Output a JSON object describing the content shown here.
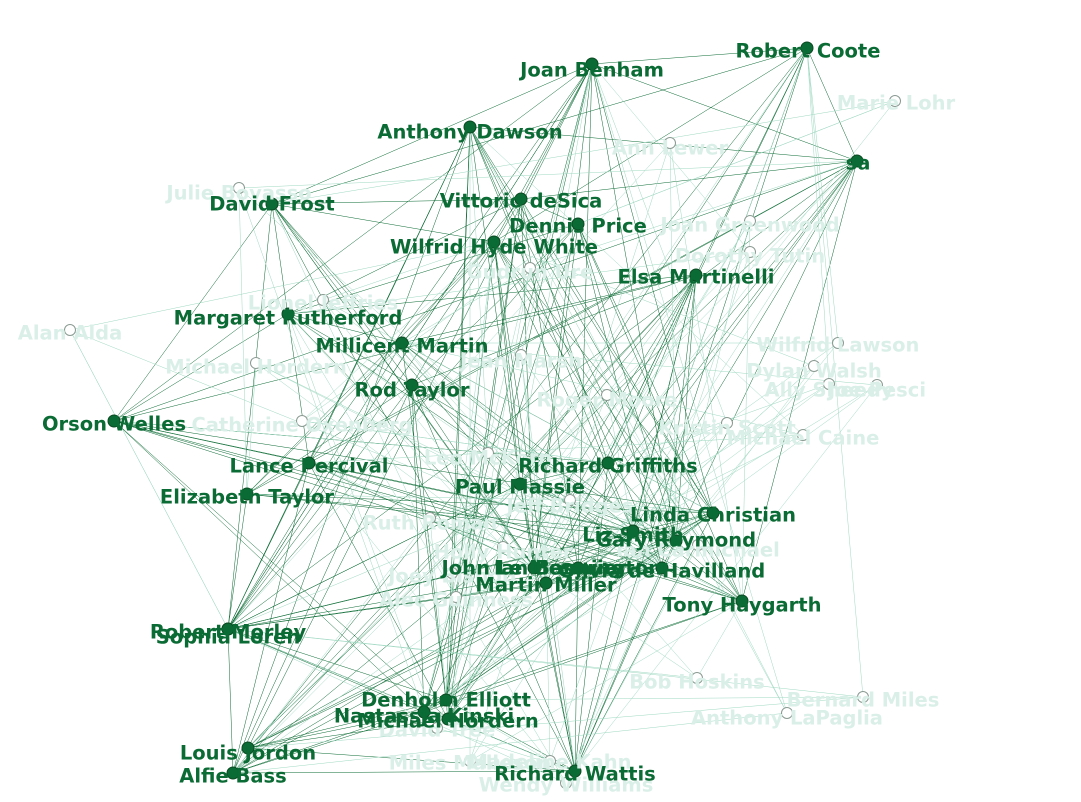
{
  "colors": {
    "highlight_node": "#0b6b34",
    "highlight_label": "#0b6b34",
    "faded_label": "#d9efe8",
    "edge": "#0b6b34",
    "faded_edge": "#9fd8c2",
    "background": "#ffffff"
  },
  "nodes": [
    {
      "id": "robert-coote",
      "label": "Robert Coote",
      "highlighted": true
    },
    {
      "id": "joan-benham",
      "label": "Joan Benham",
      "highlighted": true
    },
    {
      "id": "marie-lohr",
      "label": "Marie Lohr",
      "highlighted": false
    },
    {
      "id": "anthony-dawson",
      "label": "Anthony Dawson",
      "highlighted": true
    },
    {
      "id": "unknown-1",
      "label": "Ann Lewer",
      "highlighted": false
    },
    {
      "id": "sa",
      "label": "sa",
      "highlighted": true
    },
    {
      "id": "julie-bovasso",
      "label": "Julie Bovasso",
      "highlighted": false
    },
    {
      "id": "david-frost",
      "label": "David Frost",
      "highlighted": true
    },
    {
      "id": "vittorio-desica",
      "label": "Vittorio deSica",
      "highlighted": true
    },
    {
      "id": "dennis-price",
      "label": "Dennis Price",
      "highlighted": true
    },
    {
      "id": "joan-greenwood",
      "label": "Joan Greenwood",
      "highlighted": false
    },
    {
      "id": "dorothy-tutin",
      "label": "Dorothy Tutin",
      "highlighted": false
    },
    {
      "id": "wilfrid-hyde-white",
      "label": "Wilfrid Hyde White",
      "highlighted": true
    },
    {
      "id": "unknown-2",
      "label": "Gudrun Ure",
      "highlighted": false
    },
    {
      "id": "elsa-martinelli",
      "label": "Elsa Martinelli",
      "highlighted": true
    },
    {
      "id": "unknown-3",
      "label": "Lionel Jeffries",
      "highlighted": false
    },
    {
      "id": "alan-alda",
      "label": "Alan Alda",
      "highlighted": false
    },
    {
      "id": "margaret-rutherford",
      "label": "Margaret Rutherford",
      "highlighted": true
    },
    {
      "id": "millicent-martin",
      "label": "Millicent Martin",
      "highlighted": true
    },
    {
      "id": "wilfrid-lawson",
      "label": "Wilfrid Lawson",
      "highlighted": false
    },
    {
      "id": "unknown-4",
      "label": "Michael Hordern",
      "highlighted": false
    },
    {
      "id": "unknown-5",
      "label": "Jean Marsh",
      "highlighted": false
    },
    {
      "id": "dylan-walsh",
      "label": "Dylan Walsh",
      "highlighted": false
    },
    {
      "id": "ally-sheedy",
      "label": "Ally Sheedy",
      "highlighted": false
    },
    {
      "id": "joe-pesci",
      "label": "Joe Pesci",
      "highlighted": false
    },
    {
      "id": "rod-taylor",
      "label": "Rod Taylor",
      "highlighted": true
    },
    {
      "id": "unknown-6",
      "label": "Roger Moore",
      "highlighted": false
    },
    {
      "id": "orson-welles",
      "label": "Orson Welles",
      "highlighted": true
    },
    {
      "id": "catherine-oxenberg",
      "label": "Catherine Oxenberg",
      "highlighted": false
    },
    {
      "id": "unknown-7",
      "label": "Kristin Scott",
      "highlighted": false
    },
    {
      "id": "michael-caine",
      "label": "Michael Caine",
      "highlighted": false
    },
    {
      "id": "unknown-8",
      "label": "Leo McKern",
      "highlighted": false
    },
    {
      "id": "lance-percival",
      "label": "Lance Percival",
      "highlighted": true
    },
    {
      "id": "richard-griffiths",
      "label": "Richard Griffiths",
      "highlighted": true
    },
    {
      "id": "paul-massie",
      "label": "Paul Massie",
      "highlighted": true
    },
    {
      "id": "elizabeth-taylor",
      "label": "Elizabeth Taylor",
      "highlighted": true
    },
    {
      "id": "unknown-9",
      "label": "Jeff Bridges",
      "highlighted": false
    },
    {
      "id": "linda-christian",
      "label": "Linda Christian",
      "highlighted": true
    },
    {
      "id": "ruth-roman",
      "label": "Ruth Roman",
      "highlighted": false
    },
    {
      "id": "liz-smith",
      "label": "Liz Smith",
      "highlighted": true
    },
    {
      "id": "gary-raymond",
      "label": "Gary Raymond",
      "highlighted": true
    },
    {
      "id": "unknown-10",
      "label": "Ian Carmichael",
      "highlighted": false
    },
    {
      "id": "unknown-11",
      "label": "Holly Hunter",
      "highlighted": false
    },
    {
      "id": "joey-bishop",
      "label": "Joey Bishop",
      "highlighted": false
    },
    {
      "id": "john-le-mesurier",
      "label": "John Le Mesurier",
      "highlighted": true
    },
    {
      "id": "ian-bannington",
      "label": "Ian Bannington",
      "highlighted": true
    },
    {
      "id": "olivia-de-havilland",
      "label": "Olivia de Havilland",
      "highlighted": true
    },
    {
      "id": "martin-miller",
      "label": "Martin Miller",
      "highlighted": true
    },
    {
      "id": "unknown-12",
      "label": "Alec Guinness",
      "highlighted": false
    },
    {
      "id": "tony-haygarth",
      "label": "Tony Haygarth",
      "highlighted": true
    },
    {
      "id": "robert-morley",
      "label": "Robert Morley",
      "highlighted": true
    },
    {
      "id": "sophia-loren",
      "label": "Sophia Loren",
      "highlighted": true
    },
    {
      "id": "bob-hoskins",
      "label": "Bob Hoskins",
      "highlighted": false
    },
    {
      "id": "bernard-miles",
      "label": "Bernard Miles",
      "highlighted": false
    },
    {
      "id": "denholm-elliott",
      "label": "Denholm Elliott",
      "highlighted": true
    },
    {
      "id": "nastassja",
      "label": "Nastassja Kinski",
      "highlighted": true
    },
    {
      "id": "michael-hordern",
      "label": "Michael Hordern",
      "highlighted": true
    },
    {
      "id": "anthony-lapaglia",
      "label": "Anthony LaPaglia",
      "highlighted": false
    },
    {
      "id": "david-tree",
      "label": "David Tree",
      "highlighted": false
    },
    {
      "id": "louis-jordon",
      "label": "Louis Jordon",
      "highlighted": true
    },
    {
      "id": "alfie-bass",
      "label": "Alfie Bass",
      "highlighted": true
    },
    {
      "id": "madeline-kahn",
      "label": "Madeline Kahn",
      "highlighted": false
    },
    {
      "id": "miles-malleson",
      "label": "Miles Malleson",
      "highlighted": false
    },
    {
      "id": "richard-wattis",
      "label": "Richard Wattis",
      "highlighted": true
    },
    {
      "id": "wendy-williams",
      "label": "Wendy Williams",
      "highlighted": false
    }
  ]
}
